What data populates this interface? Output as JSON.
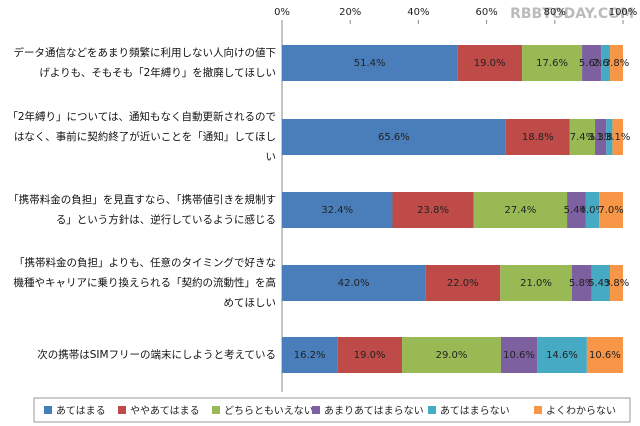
{
  "watermark": "RBBTODAY.COM",
  "chart_data": {
    "type": "stacked-barh",
    "categories": [
      "データ通信などをあまり頻繁に利用しない人向けの値下げよりも、そもそも「2年縛り」を撤廃してほしい",
      "「2年縛り」については、通知もなく自動更新されるのではなく、事前に契約終了が近いことを「通知」してほしい",
      "「携帯料金の負担」を見直すなら、「携帯値引きを規制する」という方針は、逆行しているように感じる",
      "「携帯料金の負担」よりも、任意のタイミングで好きな機種やキャリアに乗り換えられる「契約の流動性」を高めてほしい",
      "次の携帯はSIMフリーの端末にしようと考えている"
    ],
    "series": [
      {
        "name": "あてはまる",
        "color": "#4a7ebb",
        "values": [
          51.4,
          65.6,
          32.4,
          42.0,
          16.2
        ],
        "value_labels": [
          "51.4%",
          "65.6%",
          "32.4%",
          "42.0%",
          "16.2%"
        ]
      },
      {
        "name": "ややあてはまる",
        "color": "#be4b48",
        "values": [
          19.0,
          18.8,
          23.8,
          22.0,
          19.0
        ],
        "value_labels": [
          "19.0%",
          "18.8%",
          "23.8%",
          "22.0%",
          "19.0%"
        ]
      },
      {
        "name": "どちらともいえない",
        "color": "#98b954",
        "values": [
          17.6,
          7.4,
          27.4,
          21.0,
          29.0
        ],
        "value_labels": [
          "17.6%",
          "7.4%",
          "27.4%",
          "21.0%",
          "29.0%"
        ]
      },
      {
        "name": "あまりあてはまらない",
        "color": "#7d60a0",
        "values": [
          5.6,
          3.3,
          5.4,
          5.8,
          10.6
        ],
        "value_labels": [
          "5.6%",
          "3.3%",
          "5.4%",
          "5.8%",
          "10.6%"
        ]
      },
      {
        "name": "あてはまらない",
        "color": "#46aac5",
        "values": [
          2.6,
          1.8,
          4.0,
          5.4,
          14.6
        ],
        "value_labels": [
          "2.6%",
          "1.8%",
          "4.0%",
          "5.4%",
          "14.6%"
        ]
      },
      {
        "name": "よくわからない",
        "color": "#f79646",
        "values": [
          3.8,
          3.1,
          7.0,
          3.8,
          10.6
        ],
        "value_labels": [
          "3.8%",
          "3.1%",
          "7.0%",
          "3.8%",
          "10.6%"
        ]
      }
    ],
    "xlim": [
      0,
      100
    ],
    "xticks": [
      {
        "value": 0,
        "label": "0%"
      },
      {
        "value": 20,
        "label": "20%"
      },
      {
        "value": 40,
        "label": "40%"
      },
      {
        "value": 60,
        "label": "60%"
      },
      {
        "value": 80,
        "label": "80%"
      },
      {
        "value": 100,
        "label": "100%"
      }
    ]
  }
}
